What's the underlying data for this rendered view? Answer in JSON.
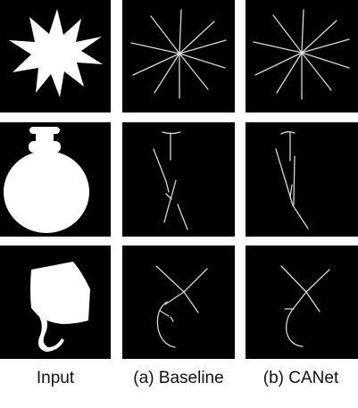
{
  "figure": {
    "columns": [
      {
        "label": "Input"
      },
      {
        "label": "(a) Baseline"
      },
      {
        "label": "(b) CANet"
      }
    ],
    "rows": [
      {
        "shape": "star"
      },
      {
        "shape": "bottle"
      },
      {
        "shape": "bag-with-tail"
      }
    ],
    "colors": {
      "background": "#000000",
      "foreground": "#ffffff",
      "skeleton": "#d8d8d8"
    }
  }
}
